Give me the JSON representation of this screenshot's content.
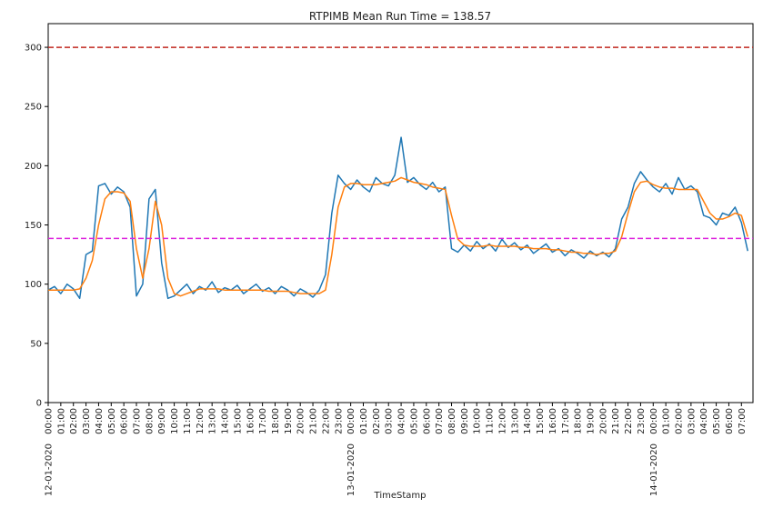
{
  "chart_data": {
    "type": "line",
    "title": "RTPIMB Mean Run Time = 138.57",
    "x_label": "TimeStamp",
    "x": [
      "12-01-2020 00:00",
      "12-01-2020 00:30",
      "12-01-2020 01:00",
      "12-01-2020 01:30",
      "12-01-2020 02:00",
      "12-01-2020 02:30",
      "12-01-2020 03:00",
      "12-01-2020 03:30",
      "12-01-2020 04:00",
      "12-01-2020 04:30",
      "12-01-2020 05:00",
      "12-01-2020 05:30",
      "12-01-2020 06:00",
      "12-01-2020 06:30",
      "12-01-2020 07:00",
      "12-01-2020 07:30",
      "12-01-2020 08:00",
      "12-01-2020 08:30",
      "12-01-2020 09:00",
      "12-01-2020 09:30",
      "12-01-2020 10:00",
      "12-01-2020 10:30",
      "12-01-2020 11:00",
      "12-01-2020 11:30",
      "12-01-2020 12:00",
      "12-01-2020 12:30",
      "12-01-2020 13:00",
      "12-01-2020 13:30",
      "12-01-2020 14:00",
      "12-01-2020 14:30",
      "12-01-2020 15:00",
      "12-01-2020 15:30",
      "12-01-2020 16:00",
      "12-01-2020 16:30",
      "12-01-2020 17:00",
      "12-01-2020 17:30",
      "12-01-2020 18:00",
      "12-01-2020 18:30",
      "12-01-2020 19:00",
      "12-01-2020 19:30",
      "12-01-2020 20:00",
      "12-01-2020 20:30",
      "12-01-2020 21:00",
      "12-01-2020 21:30",
      "12-01-2020 22:00",
      "12-01-2020 22:30",
      "12-01-2020 23:00",
      "12-01-2020 23:30",
      "13-01-2020 00:00",
      "13-01-2020 00:30",
      "13-01-2020 01:00",
      "13-01-2020 01:30",
      "13-01-2020 02:00",
      "13-01-2020 02:30",
      "13-01-2020 03:00",
      "13-01-2020 03:30",
      "13-01-2020 04:00",
      "13-01-2020 04:30",
      "13-01-2020 05:00",
      "13-01-2020 05:30",
      "13-01-2020 06:00",
      "13-01-2020 06:30",
      "13-01-2020 07:00",
      "13-01-2020 07:30",
      "13-01-2020 08:00",
      "13-01-2020 08:30",
      "13-01-2020 09:00",
      "13-01-2020 09:30",
      "13-01-2020 10:00",
      "13-01-2020 10:30",
      "13-01-2020 11:00",
      "13-01-2020 11:30",
      "13-01-2020 12:00",
      "13-01-2020 12:30",
      "13-01-2020 13:00",
      "13-01-2020 13:30",
      "13-01-2020 14:00",
      "13-01-2020 14:30",
      "13-01-2020 15:00",
      "13-01-2020 15:30",
      "13-01-2020 16:00",
      "13-01-2020 16:30",
      "13-01-2020 17:00",
      "13-01-2020 17:30",
      "13-01-2020 18:00",
      "13-01-2020 18:30",
      "13-01-2020 19:00",
      "13-01-2020 19:30",
      "13-01-2020 20:00",
      "13-01-2020 20:30",
      "13-01-2020 21:00",
      "13-01-2020 21:30",
      "13-01-2020 22:00",
      "13-01-2020 22:30",
      "13-01-2020 23:00",
      "13-01-2020 23:30",
      "14-01-2020 00:00",
      "14-01-2020 00:30",
      "14-01-2020 01:00",
      "14-01-2020 01:30",
      "14-01-2020 02:00",
      "14-01-2020 02:30",
      "14-01-2020 03:00",
      "14-01-2020 03:30",
      "14-01-2020 04:00",
      "14-01-2020 04:30",
      "14-01-2020 05:00",
      "14-01-2020 05:30",
      "14-01-2020 06:00",
      "14-01-2020 06:30",
      "14-01-2020 07:00",
      "14-01-2020 07:30"
    ],
    "series": [
      {
        "color": "#1f77b4",
        "values": [
          95,
          98,
          92,
          100,
          96,
          88,
          125,
          128,
          183,
          185,
          176,
          182,
          178,
          165,
          90,
          100,
          172,
          180,
          118,
          88,
          90,
          95,
          100,
          92,
          98,
          95,
          102,
          93,
          97,
          95,
          99,
          92,
          96,
          100,
          94,
          97,
          92,
          98,
          95,
          90,
          96,
          93,
          89,
          95,
          108,
          160,
          192,
          185,
          180,
          188,
          182,
          178,
          190,
          185,
          183,
          192,
          224,
          186,
          190,
          184,
          180,
          186,
          178,
          182,
          130,
          127,
          133,
          128,
          136,
          130,
          134,
          128,
          138,
          131,
          135,
          129,
          133,
          126,
          130,
          134,
          127,
          130,
          124,
          129,
          126,
          122,
          128,
          124,
          127,
          123,
          130,
          155,
          165,
          185,
          195,
          188,
          182,
          178,
          185,
          176,
          190,
          180,
          183,
          178,
          158,
          156,
          150,
          160,
          158,
          165,
          152,
          128
        ]
      },
      {
        "color": "#ff7f0e",
        "values": [
          95,
          95,
          95,
          95,
          95,
          96,
          105,
          120,
          150,
          172,
          178,
          178,
          177,
          170,
          130,
          105,
          130,
          170,
          150,
          105,
          92,
          90,
          92,
          94,
          96,
          96,
          96,
          96,
          95,
          95,
          95,
          95,
          95,
          95,
          95,
          94,
          94,
          94,
          94,
          93,
          92,
          92,
          92,
          92,
          95,
          125,
          165,
          182,
          185,
          185,
          184,
          184,
          184,
          185,
          186,
          187,
          190,
          188,
          186,
          185,
          184,
          182,
          181,
          180,
          158,
          138,
          133,
          132,
          132,
          132,
          133,
          132,
          132,
          132,
          132,
          131,
          131,
          130,
          130,
          130,
          129,
          129,
          128,
          127,
          127,
          126,
          126,
          125,
          126,
          126,
          128,
          140,
          160,
          178,
          186,
          187,
          184,
          182,
          181,
          181,
          180,
          180,
          180,
          180,
          170,
          160,
          155,
          155,
          157,
          160,
          158,
          140
        ]
      }
    ],
    "hlines": [
      {
        "value": 300,
        "color": "#c0281e"
      },
      {
        "value": 138.57,
        "color": "#dd22dd"
      }
    ],
    "xlim": [
      "12-01-2020 00:00",
      "14-01-2020 07:55"
    ],
    "xticks": [
      {
        "value": "12-01-2020 00:00",
        "label": "00:00"
      },
      {
        "value": "12-01-2020 01:00",
        "label": "01:00"
      },
      {
        "value": "12-01-2020 02:00",
        "label": "02:00"
      },
      {
        "value": "12-01-2020 03:00",
        "label": "03:00"
      },
      {
        "value": "12-01-2020 04:00",
        "label": "04:00"
      },
      {
        "value": "12-01-2020 05:00",
        "label": "05:00"
      },
      {
        "value": "12-01-2020 06:00",
        "label": "06:00"
      },
      {
        "value": "12-01-2020 07:00",
        "label": "07:00"
      },
      {
        "value": "12-01-2020 08:00",
        "label": "08:00"
      },
      {
        "value": "12-01-2020 09:00",
        "label": "09:00"
      },
      {
        "value": "12-01-2020 10:00",
        "label": "10:00"
      },
      {
        "value": "12-01-2020 11:00",
        "label": "11:00"
      },
      {
        "value": "12-01-2020 12:00",
        "label": "12:00"
      },
      {
        "value": "12-01-2020 13:00",
        "label": "13:00"
      },
      {
        "value": "12-01-2020 14:00",
        "label": "14:00"
      },
      {
        "value": "12-01-2020 15:00",
        "label": "15:00"
      },
      {
        "value": "12-01-2020 16:00",
        "label": "16:00"
      },
      {
        "value": "12-01-2020 17:00",
        "label": "17:00"
      },
      {
        "value": "12-01-2020 18:00",
        "label": "18:00"
      },
      {
        "value": "12-01-2020 19:00",
        "label": "19:00"
      },
      {
        "value": "12-01-2020 20:00",
        "label": "20:00"
      },
      {
        "value": "12-01-2020 21:00",
        "label": "21:00"
      },
      {
        "value": "12-01-2020 22:00",
        "label": "22:00"
      },
      {
        "value": "12-01-2020 23:00",
        "label": "23:00"
      },
      {
        "value": "13-01-2020 00:00",
        "label": "00:00"
      },
      {
        "value": "13-01-2020 01:00",
        "label": "01:00"
      },
      {
        "value": "13-01-2020 02:00",
        "label": "02:00"
      },
      {
        "value": "13-01-2020 03:00",
        "label": "03:00"
      },
      {
        "value": "13-01-2020 04:00",
        "label": "04:00"
      },
      {
        "value": "13-01-2020 05:00",
        "label": "05:00"
      },
      {
        "value": "13-01-2020 06:00",
        "label": "06:00"
      },
      {
        "value": "13-01-2020 07:00",
        "label": "07:00"
      },
      {
        "value": "13-01-2020 08:00",
        "label": "08:00"
      },
      {
        "value": "13-01-2020 09:00",
        "label": "09:00"
      },
      {
        "value": "13-01-2020 10:00",
        "label": "10:00"
      },
      {
        "value": "13-01-2020 11:00",
        "label": "11:00"
      },
      {
        "value": "13-01-2020 12:00",
        "label": "12:00"
      },
      {
        "value": "13-01-2020 13:00",
        "label": "13:00"
      },
      {
        "value": "13-01-2020 14:00",
        "label": "14:00"
      },
      {
        "value": "13-01-2020 15:00",
        "label": "15:00"
      },
      {
        "value": "13-01-2020 16:00",
        "label": "16:00"
      },
      {
        "value": "13-01-2020 17:00",
        "label": "17:00"
      },
      {
        "value": "13-01-2020 18:00",
        "label": "18:00"
      },
      {
        "value": "13-01-2020 19:00",
        "label": "19:00"
      },
      {
        "value": "13-01-2020 20:00",
        "label": "20:00"
      },
      {
        "value": "13-01-2020 21:00",
        "label": "21:00"
      },
      {
        "value": "13-01-2020 22:00",
        "label": "22:00"
      },
      {
        "value": "13-01-2020 23:00",
        "label": "23:00"
      },
      {
        "value": "14-01-2020 00:00",
        "label": "00:00"
      },
      {
        "value": "14-01-2020 01:00",
        "label": "01:00"
      },
      {
        "value": "14-01-2020 02:00",
        "label": "02:00"
      },
      {
        "value": "14-01-2020 03:00",
        "label": "03:00"
      },
      {
        "value": "14-01-2020 04:00",
        "label": "04:00"
      },
      {
        "value": "14-01-2020 05:00",
        "label": "05:00"
      },
      {
        "value": "14-01-2020 06:00",
        "label": "06:00"
      },
      {
        "value": "14-01-2020 07:00",
        "label": "07:00"
      }
    ],
    "date_ticks": [
      {
        "value": "12-01-2020 00:00",
        "label": "12-01-2020"
      },
      {
        "value": "13-01-2020 00:00",
        "label": "13-01-2020"
      },
      {
        "value": "14-01-2020 00:00",
        "label": "14-01-2020"
      }
    ],
    "ylim": [
      0,
      320
    ],
    "yticks": [
      0,
      50,
      100,
      150,
      200,
      250,
      300
    ]
  }
}
